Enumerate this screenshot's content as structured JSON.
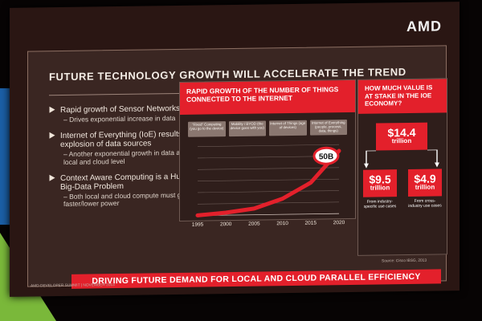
{
  "logo": "AMD",
  "title": "FUTURE TECHNOLOGY GROWTH WILL ACCELERATE THE TREND",
  "bullets": [
    {
      "main": "Rapid growth of Sensor Networks",
      "sub": "– Drives exponential increase in data"
    },
    {
      "main": "Internet of Everything (IoE) results in explosion of data sources",
      "sub": "– Another exponential growth in data at local and cloud level"
    },
    {
      "main": "Context Aware Computing is a Huge Big-Data Problem",
      "sub": "– Both local and cloud compute must get faster/lower power"
    }
  ],
  "chart": {
    "heading": "RAPID GROWTH OF THE NUMBER OF THINGS CONNECTED TO THE INTERNET",
    "eras": [
      "\"Fixed\" Computing (you go to the device)",
      "Mobility / BYOD (the device goes with you)",
      "Internet of Things (age of devices)",
      "Internet of Everything (people, process, data, things)"
    ],
    "callout": "50B"
  },
  "chart_data": {
    "type": "line",
    "x": [
      1995,
      2000,
      2005,
      2010,
      2015,
      2020
    ],
    "series": [
      {
        "values": [
          0.2,
          2,
          5,
          12.5,
          25,
          50
        ]
      }
    ],
    "callout_label": "50B",
    "xlim": [
      1995,
      2020
    ],
    "ylim": [
      0,
      55
    ],
    "grid": true
  },
  "value": {
    "heading": "HOW MUCH VALUE IS AT STAKE IN THE IOE ECONOMY?",
    "total_amount": "$14.4",
    "total_unit": "trillion",
    "industry_amount": "$9.5",
    "industry_unit": "trillion",
    "industry_desc": "From industry-specific use cases",
    "cross_amount": "$4.9",
    "cross_unit": "trillion",
    "cross_desc": "From cross-industry use cases"
  },
  "banner": "DRIVING FUTURE DEMAND FOR LOCAL AND CLOUD PARALLEL EFFICIENCY",
  "source": "Source: Cisco IBSG, 2013",
  "footer": "AMD DEVELOPER SUMMIT | NOVEMBER 2013"
}
